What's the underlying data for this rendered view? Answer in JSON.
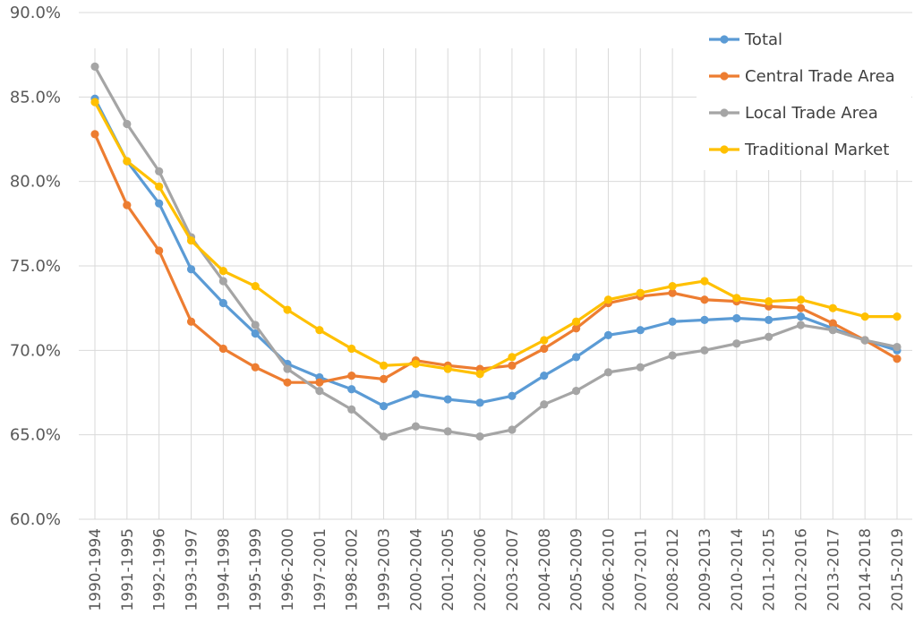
{
  "chart_data": {
    "type": "line",
    "title": "",
    "xlabel": "",
    "ylabel": "",
    "ylim": [
      60,
      90
    ],
    "ytick_step": 5,
    "y_format": "percent_1dp",
    "grid": "horizontal",
    "legend_position": "top-right",
    "categories": [
      "1990-1994",
      "1991-1995",
      "1992-1996",
      "1993-1997",
      "1994-1998",
      "1995-1999",
      "1996-2000",
      "1997-2001",
      "1998-2002",
      "1999-2003",
      "2000-2004",
      "2001-2005",
      "2002-2006",
      "2003-2007",
      "2004-2008",
      "2005-2009",
      "2006-2010",
      "2007-2011",
      "2008-2012",
      "2009-2013",
      "2010-2014",
      "2011-2015",
      "2012-2016",
      "2013-2017",
      "2014-2018",
      "2015-2019"
    ],
    "series": [
      {
        "name": "Total",
        "color": "#5B9BD5",
        "values": [
          84.9,
          81.2,
          78.7,
          74.8,
          72.8,
          71.0,
          69.2,
          68.4,
          67.7,
          66.7,
          67.4,
          67.1,
          66.9,
          67.3,
          68.5,
          69.6,
          70.9,
          71.2,
          71.7,
          71.8,
          71.9,
          71.8,
          72.0,
          71.3,
          70.6,
          70.0
        ]
      },
      {
        "name": "Central Trade Area",
        "color": "#ED7D31",
        "values": [
          82.8,
          78.6,
          75.9,
          71.7,
          70.1,
          69.0,
          68.1,
          68.1,
          68.5,
          68.3,
          69.4,
          69.1,
          68.9,
          69.1,
          70.1,
          71.3,
          72.8,
          73.2,
          73.4,
          73.0,
          72.9,
          72.6,
          72.5,
          71.6,
          70.6,
          69.5
        ]
      },
      {
        "name": "Local Trade Area",
        "color": "#A5A5A5",
        "values": [
          86.8,
          83.4,
          80.6,
          76.7,
          74.1,
          71.5,
          68.9,
          67.6,
          66.5,
          64.9,
          65.5,
          65.2,
          64.9,
          65.3,
          66.8,
          67.6,
          68.7,
          69.0,
          69.7,
          70.0,
          70.4,
          70.8,
          71.5,
          71.2,
          70.6,
          70.2
        ]
      },
      {
        "name": "Traditional Market",
        "color": "#FFC000",
        "values": [
          84.7,
          81.2,
          79.7,
          76.5,
          74.7,
          73.8,
          72.4,
          71.2,
          70.1,
          69.1,
          69.2,
          68.9,
          68.6,
          69.6,
          70.6,
          71.7,
          73.0,
          73.4,
          73.8,
          74.1,
          73.1,
          72.9,
          73.0,
          72.5,
          72.0,
          72.0
        ]
      }
    ]
  }
}
